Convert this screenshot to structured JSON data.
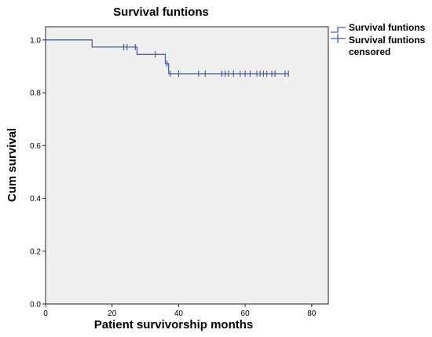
{
  "chart_data": {
    "type": "line",
    "subtype": "kaplan-meier-step",
    "title": "Survival funtions",
    "xlabel": "Patient survivorship months",
    "ylabel": "Cum survival",
    "xlim": [
      0,
      85
    ],
    "ylim": [
      0,
      1.05
    ],
    "xticks": [
      0,
      20,
      40,
      60,
      80
    ],
    "yticks": [
      0.0,
      0.2,
      0.4,
      0.6,
      0.8,
      1.0
    ],
    "ytick_labels": [
      "0.0",
      "0.2",
      "0.4",
      "0.6",
      "0.8",
      "1.0"
    ],
    "grid": false,
    "legend_position": "top-right, outside plot",
    "legend": {
      "line_label": "Survival funtions",
      "censored_label_line1": "Survival funtions",
      "censored_label_line2": "censored"
    },
    "colors": {
      "line": "#4a5fa8",
      "plot_background": "#efefef"
    },
    "series": [
      {
        "name": "Survival funtions",
        "steps": [
          {
            "x": 0,
            "y": 1.0
          },
          {
            "x": 14,
            "y": 0.973
          },
          {
            "x": 27.5,
            "y": 0.945
          },
          {
            "x": 36,
            "y": 0.91
          },
          {
            "x": 37,
            "y": 0.872
          },
          {
            "x": 73,
            "y": 0.872
          }
        ]
      },
      {
        "name": "Survival funtions censored",
        "points": [
          {
            "x": 23.5,
            "y": 0.973
          },
          {
            "x": 24.5,
            "y": 0.973
          },
          {
            "x": 27,
            "y": 0.973
          },
          {
            "x": 33,
            "y": 0.945
          },
          {
            "x": 36.5,
            "y": 0.91
          },
          {
            "x": 37.5,
            "y": 0.872
          },
          {
            "x": 40,
            "y": 0.872
          },
          {
            "x": 46,
            "y": 0.872
          },
          {
            "x": 48,
            "y": 0.872
          },
          {
            "x": 53,
            "y": 0.872
          },
          {
            "x": 54,
            "y": 0.872
          },
          {
            "x": 55,
            "y": 0.872
          },
          {
            "x": 56.5,
            "y": 0.872
          },
          {
            "x": 58.5,
            "y": 0.872
          },
          {
            "x": 60,
            "y": 0.872
          },
          {
            "x": 61.5,
            "y": 0.872
          },
          {
            "x": 63.5,
            "y": 0.872
          },
          {
            "x": 64.5,
            "y": 0.872
          },
          {
            "x": 65.5,
            "y": 0.872
          },
          {
            "x": 66.5,
            "y": 0.872
          },
          {
            "x": 68,
            "y": 0.872
          },
          {
            "x": 69,
            "y": 0.872
          },
          {
            "x": 72,
            "y": 0.872
          },
          {
            "x": 73,
            "y": 0.872
          }
        ]
      }
    ]
  }
}
